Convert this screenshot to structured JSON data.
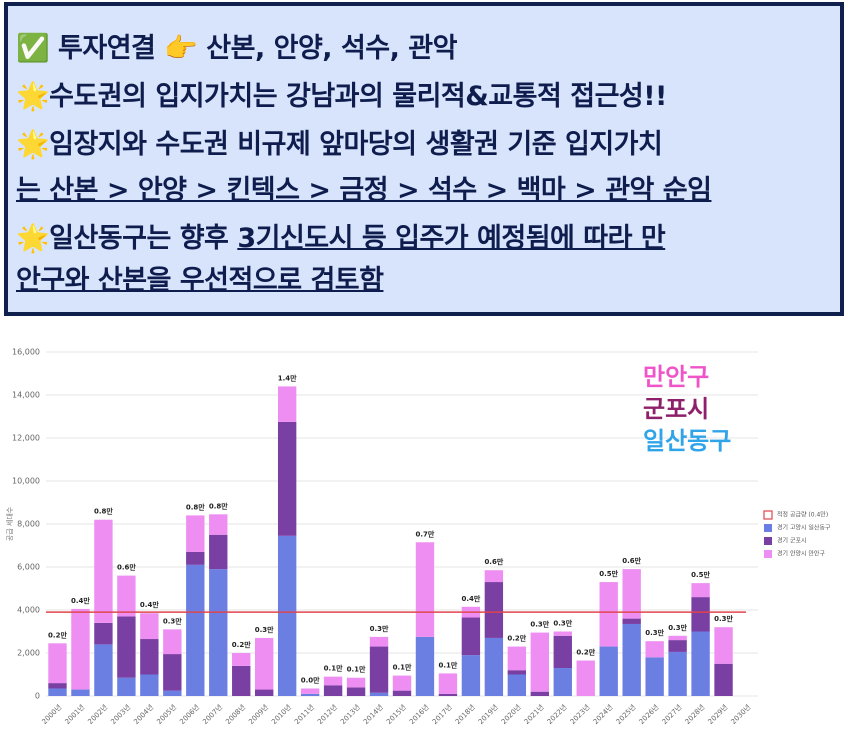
{
  "panel": {
    "lines": [
      [
        "✅ 투자연결 👉 산본, 안양, 석수, 관악"
      ],
      [
        "🌟수도권의 입지가치는 강남과의 물리적&교통적 접근성!!"
      ],
      [
        "🌟임장지와 수도권 비규제 앞마당의 생활권 기준 입지가치"
      ],
      [
        "는 산본 > 안양 > 킨텍스 > 금정 > 석수 > 백마 > 관악 순임"
      ],
      [
        "🌟일산동구는 향후 ",
        "3기신도시 등 입주가 예정됨에 따라 만"
      ],
      [
        "안구와 산본을 우선적으로 검토함"
      ]
    ]
  },
  "chart_data": {
    "type": "stacked_bar",
    "y_label": "공급 세대수",
    "categories": [
      "2000년",
      "2001년",
      "2002년",
      "2003년",
      "2004년",
      "2005년",
      "2006년",
      "2007년",
      "2008년",
      "2009년",
      "2010년",
      "2011년",
      "2012년",
      "2013년",
      "2014년",
      "2015년",
      "2016년",
      "2017년",
      "2018년",
      "2019년",
      "2020년",
      "2021년",
      "2022년",
      "2023년",
      "2024년",
      "2025년",
      "2026년",
      "2027년",
      "2028년",
      "2029년",
      "2030년"
    ],
    "series": [
      {
        "name": "경기 고양시 일산동구",
        "color": "#6b7fe3",
        "values": [
          350,
          300,
          2400,
          850,
          1000,
          250,
          6100,
          5900,
          0,
          0,
          7450,
          100,
          0,
          0,
          150,
          0,
          2750,
          0,
          1900,
          2700,
          1000,
          0,
          1300,
          0,
          2300,
          3350,
          1800,
          2050,
          3000,
          0,
          0
        ]
      },
      {
        "name": "경기 군포시",
        "color": "#7a3fa3",
        "values": [
          250,
          0,
          1000,
          2850,
          1650,
          1700,
          600,
          1600,
          1400,
          300,
          5300,
          0,
          500,
          400,
          2150,
          250,
          0,
          100,
          1750,
          2600,
          200,
          200,
          1500,
          0,
          0,
          250,
          0,
          550,
          1600,
          1500,
          0
        ]
      },
      {
        "name": "경기 안양시 만안구",
        "color": "#ee8ef2",
        "values": [
          1850,
          3750,
          4800,
          1900,
          1200,
          1150,
          1700,
          950,
          600,
          2400,
          1650,
          250,
          400,
          450,
          450,
          700,
          4400,
          950,
          500,
          550,
          1100,
          2750,
          200,
          1650,
          3000,
          2300,
          750,
          200,
          650,
          1700,
          0
        ]
      }
    ],
    "total_labels": [
      "0.2만",
      "0.4만",
      "0.8만",
      "0.6만",
      "0.4만",
      "0.3만",
      "0.8만",
      "0.8만",
      "0.2만",
      "0.3만",
      "1.4만",
      "0.0만",
      "0.1만",
      "0.1만",
      "0.3만",
      "0.1만",
      "0.7만",
      "0.1만",
      "0.4만",
      "0.6만",
      "0.2만",
      "0.3만",
      "0.3만",
      "0.2만",
      "0.5만",
      "0.6만",
      "0.3만",
      "0.3만",
      "0.5만",
      "0.3만",
      null
    ],
    "reference_line": {
      "name": "적정 공급량 (0.4만)",
      "value": 3900,
      "color": "#e0444e"
    },
    "annotations": [
      {
        "text": "만안구",
        "color": "#ef55c8"
      },
      {
        "text": "군포시",
        "color": "#8e1f6a"
      },
      {
        "text": "일산동구",
        "color": "#2fa4e8"
      }
    ],
    "ylim": [
      0,
      16000
    ],
    "yticks": [
      0,
      {
        "value": 2000,
        "label": "2,000"
      },
      {
        "value": 4000,
        "label": "4,000"
      },
      {
        "value": 6000,
        "label": "6,000"
      },
      {
        "value": 8000,
        "label": "8,000"
      },
      {
        "value": 10000,
        "label": "10,000"
      },
      {
        "value": 12000,
        "label": "12,000"
      },
      {
        "value": 14000,
        "label": "14,000"
      },
      {
        "value": 16000,
        "label": "16,000"
      }
    ],
    "grid": true,
    "legend": "right"
  }
}
